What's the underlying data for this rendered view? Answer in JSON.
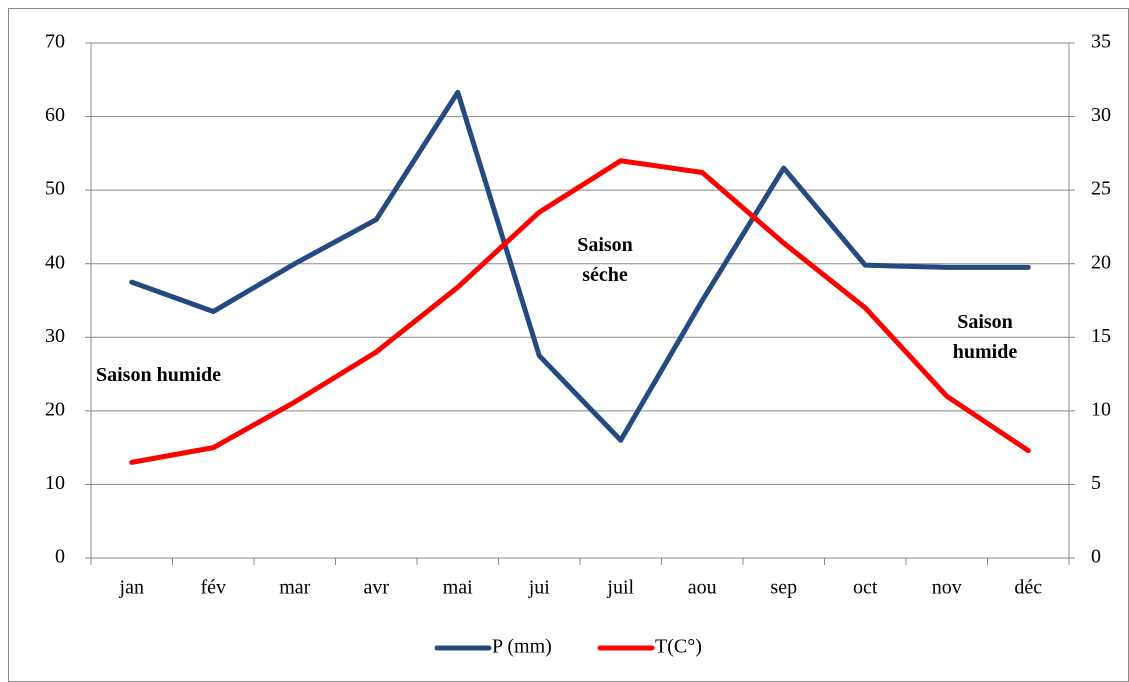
{
  "chart_data": {
    "type": "line",
    "categories": [
      "jan",
      "fév",
      "mar",
      "avr",
      "mai",
      "jui",
      "juil",
      "aou",
      "sep",
      "oct",
      "nov",
      "déc"
    ],
    "series": [
      {
        "name": "P (mm)",
        "color": "#254a7f",
        "values": [
          37.5,
          33.5,
          40,
          46,
          63.3,
          27.5,
          16,
          35,
          53,
          39.8,
          39.5,
          39.5
        ]
      },
      {
        "name": "T(C°)",
        "color": "#ff0000",
        "axis": "y2",
        "values": [
          6.5,
          7.5,
          10.6,
          14,
          18.4,
          23.5,
          27,
          26.2,
          21.4,
          17,
          11,
          7.3
        ]
      }
    ],
    "ylim": [
      0,
      70
    ],
    "yticks": [
      0,
      10,
      20,
      30,
      40,
      50,
      60,
      70
    ],
    "y2lim": [
      0,
      35
    ],
    "y2ticks": [
      0,
      5,
      10,
      15,
      20,
      25,
      30,
      35
    ],
    "grid": true,
    "legend": "bottom",
    "annotations": [
      "Saison humide",
      "Saison séche",
      "Saison humide"
    ]
  }
}
